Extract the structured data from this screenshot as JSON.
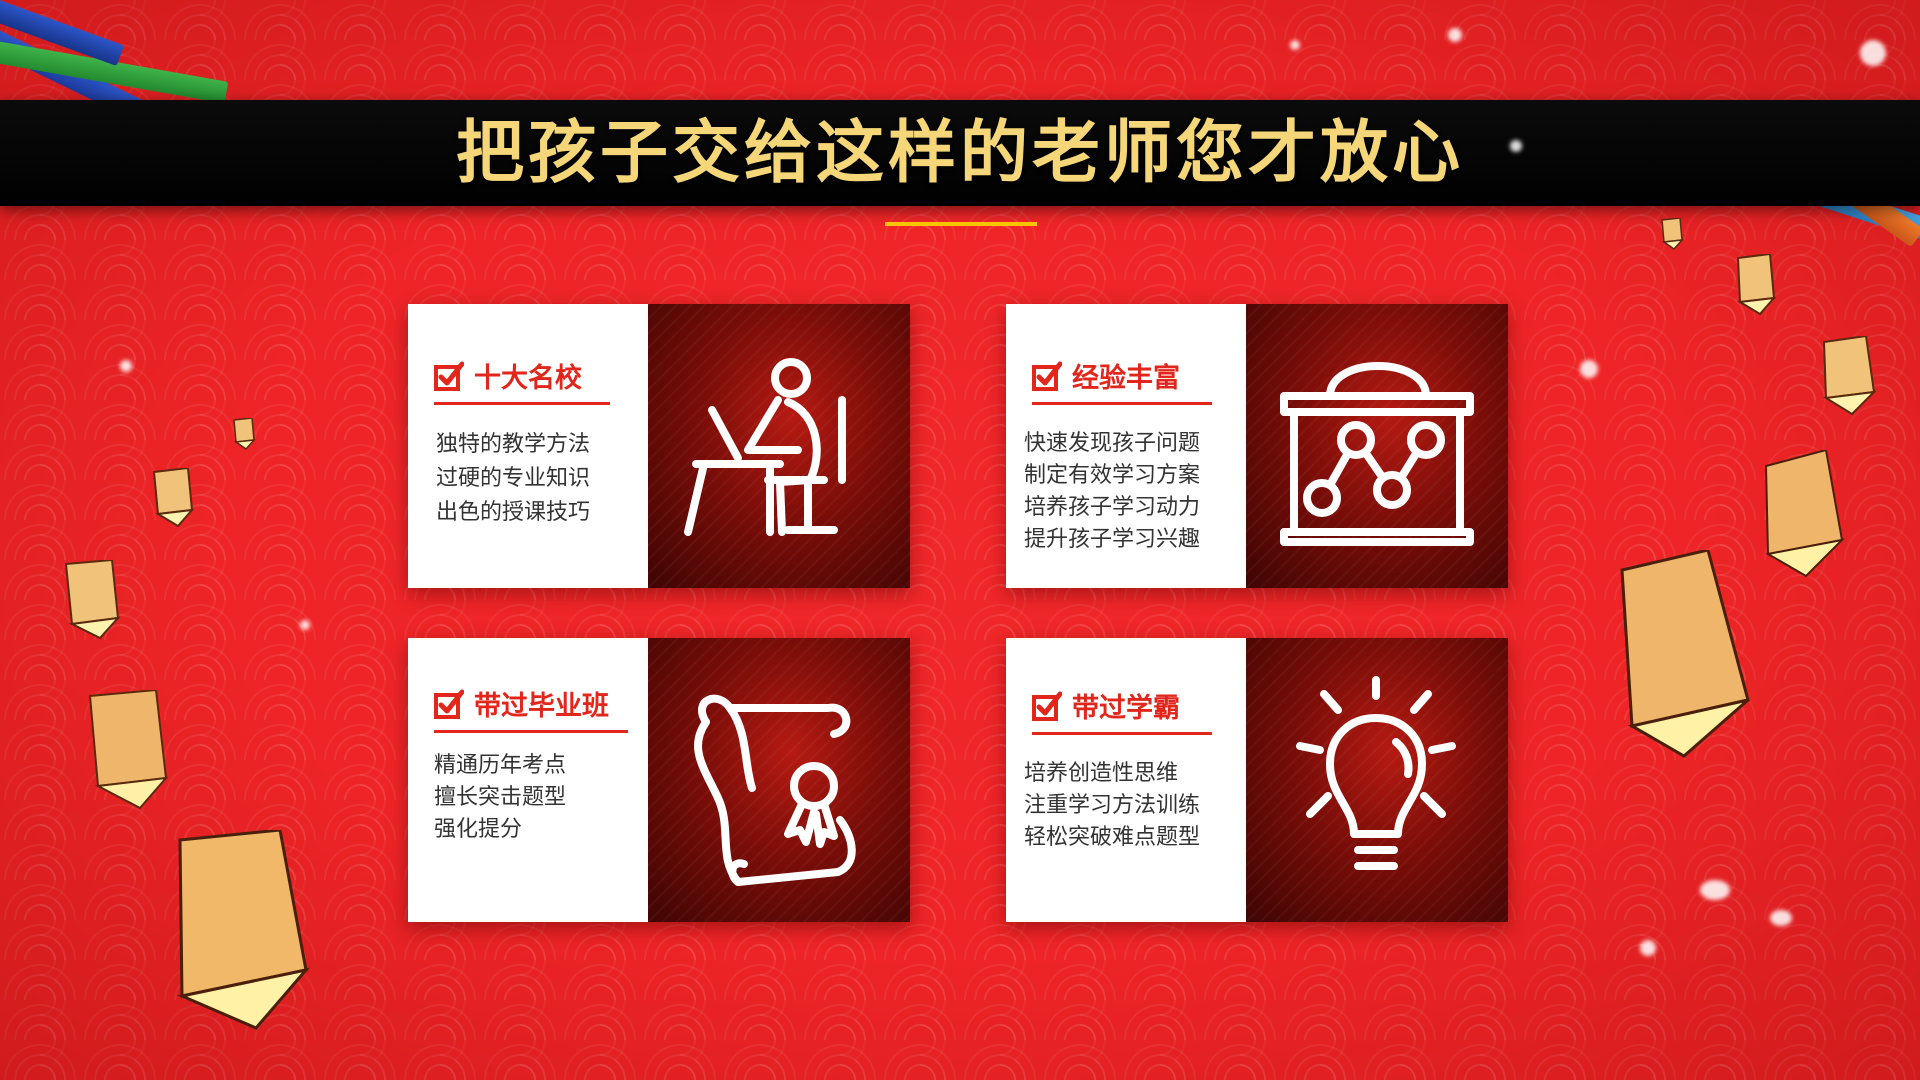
{
  "title": "把孩子交给这样的老师您才放心",
  "cards": [
    {
      "heading": "十大名校",
      "lines": [
        "独特的教学方法",
        "过硬的专业知识",
        "出色的授课技巧"
      ],
      "icon": "teacher-at-desk-icon"
    },
    {
      "heading": "经验丰富",
      "lines": [
        "快速发现孩子问题",
        "制定有效学习方案",
        "培养孩子学习动力",
        "提升孩子学习兴趣"
      ],
      "icon": "chart-board-icon"
    },
    {
      "heading": "带过毕业班",
      "lines": [
        "精通历年考点",
        "擅长突击题型",
        "强化提分"
      ],
      "icon": "diploma-scroll-icon"
    },
    {
      "heading": "带过学霸",
      "lines": [
        "培养创造性思维",
        "注重学习方法训练",
        "轻松突破难点题型"
      ],
      "icon": "lightbulb-icon"
    }
  ],
  "colors": {
    "background": "#ee2426",
    "title_band": "#000000",
    "title_text": "#f5d77a",
    "accent_red": "#e2261c",
    "underline": "#f6c500"
  }
}
